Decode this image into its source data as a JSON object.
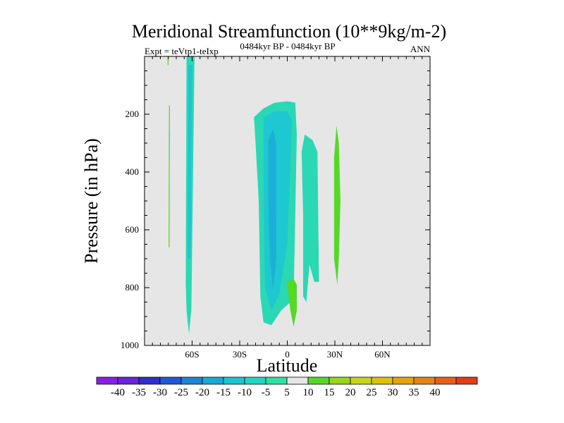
{
  "chart_data": {
    "type": "heatmap",
    "title": "Meridional Streamfunction (10**9kg/m-2)",
    "left_string": "Expt = teVtp1-teIxp",
    "center_string": "0484kyr BP - 0484kyr BP",
    "right_string": "ANN",
    "xlabel": "Latitude",
    "ylabel": "Pressure (in hPa)",
    "xlim": [
      -90,
      90
    ],
    "ylim": [
      1000,
      0
    ],
    "x_ticks": [
      -60,
      -30,
      0,
      30,
      60
    ],
    "x_tick_labels": [
      "60S",
      "30S",
      "0",
      "30N",
      "60N"
    ],
    "y_ticks": [
      200,
      400,
      600,
      800,
      1000
    ],
    "y_tick_labels": [
      "200",
      "400",
      "600",
      "800",
      "1000"
    ],
    "colorbar": {
      "labels": [
        "-40",
        "-35",
        "-30",
        "-25",
        "-20",
        "-15",
        "-10",
        "-5",
        "5",
        "10",
        "15",
        "20",
        "25",
        "30",
        "35",
        "40"
      ],
      "colors": [
        "#8a1ee8",
        "#6a24dc",
        "#2f2fcc",
        "#1f58d8",
        "#1c86d6",
        "#16aad8",
        "#1cc4d4",
        "#20d6c0",
        "#32e0a0",
        "#e6e6e6",
        "#56d826",
        "#98d61a",
        "#c8d41a",
        "#dcc20c",
        "#e6a410",
        "#e68414",
        "#e86018",
        "#e43c14"
      ]
    },
    "background_color": "#e6e6e6",
    "regions": [
      {
        "name": "sh-column-outer",
        "level": -7.5,
        "color": "#2ad8b4",
        "points": [
          [
            -63.5,
            0
          ],
          [
            -58.5,
            0
          ],
          [
            -60.5,
            880
          ],
          [
            -62,
            960
          ],
          [
            -63.5,
            880
          ],
          [
            -64,
            790
          ]
        ]
      },
      {
        "name": "sh-column-inner",
        "level": -12.5,
        "color": "#20c4ce",
        "points": [
          [
            -62.4,
            30
          ],
          [
            -60.0,
            30
          ],
          [
            -61.0,
            700
          ],
          [
            -62.6,
            700
          ]
        ]
      },
      {
        "name": "narrow-band-a",
        "level": 7.5,
        "color": "#56d826",
        "points": [
          [
            -75.5,
            0
          ],
          [
            -74.8,
            0
          ],
          [
            -74.9,
            30
          ],
          [
            -75.4,
            30
          ]
        ]
      },
      {
        "name": "narrow-band-b",
        "level": 7.5,
        "color": "#56d826",
        "points": [
          [
            -74.6,
            170
          ],
          [
            -74.0,
            170
          ],
          [
            -74.2,
            660
          ],
          [
            -74.8,
            660
          ]
        ]
      },
      {
        "name": "narrow-band-c",
        "level": -7.5,
        "color": "#2ad8b4",
        "points": [
          [
            -74.6,
            260
          ],
          [
            -74.0,
            260
          ],
          [
            -74.1,
            360
          ],
          [
            -74.5,
            360
          ]
        ]
      },
      {
        "name": "tropical-cell-outer",
        "level": -7.5,
        "color": "#2ad8b4",
        "points": [
          [
            -21,
            210
          ],
          [
            -15,
            180
          ],
          [
            -8,
            160
          ],
          [
            0,
            155
          ],
          [
            5,
            160
          ],
          [
            6,
            270
          ],
          [
            4,
            840
          ],
          [
            -4,
            880
          ],
          [
            -10,
            930
          ],
          [
            -15,
            920
          ],
          [
            -17,
            830
          ],
          [
            -18,
            500
          ],
          [
            -20,
            300
          ]
        ]
      },
      {
        "name": "tropical-cell-middle",
        "level": -12.5,
        "color": "#1ec8d0",
        "points": [
          [
            -15,
            210
          ],
          [
            -8,
            190
          ],
          [
            0,
            190
          ],
          [
            3,
            220
          ],
          [
            0,
            650
          ],
          [
            -5,
            820
          ],
          [
            -10,
            880
          ],
          [
            -14,
            800
          ],
          [
            -15,
            500
          ]
        ]
      },
      {
        "name": "tropical-cell-inner",
        "level": -17.5,
        "color": "#1cb0d8",
        "points": [
          [
            -12,
            290
          ],
          [
            -9,
            250
          ],
          [
            -7,
            300
          ],
          [
            -7,
            700
          ],
          [
            -9,
            810
          ],
          [
            -11,
            700
          ],
          [
            -12,
            500
          ]
        ]
      },
      {
        "name": "secondary-cell",
        "level": -7.5,
        "color": "#2ad8b4",
        "points": [
          [
            9,
            330
          ],
          [
            11,
            270
          ],
          [
            16,
            290
          ],
          [
            19,
            330
          ],
          [
            20,
            780
          ],
          [
            17,
            780
          ],
          [
            14,
            720
          ],
          [
            12,
            850
          ],
          [
            10,
            830
          ],
          [
            10,
            550
          ]
        ]
      },
      {
        "name": "lower-positive-cell",
        "level": 7.5,
        "color": "#56d826",
        "points": [
          [
            0,
            780
          ],
          [
            4,
            770
          ],
          [
            6,
            790
          ],
          [
            6,
            880
          ],
          [
            4,
            935
          ],
          [
            2,
            880
          ],
          [
            0,
            800
          ]
        ]
      },
      {
        "name": "nh-positive-cell",
        "level": 7.5,
        "color": "#56d826",
        "points": [
          [
            31,
            240
          ],
          [
            32.5,
            300
          ],
          [
            33.5,
            500
          ],
          [
            32.5,
            700
          ],
          [
            31.5,
            790
          ],
          [
            29.5,
            700
          ],
          [
            29.5,
            350
          ]
        ]
      }
    ]
  }
}
